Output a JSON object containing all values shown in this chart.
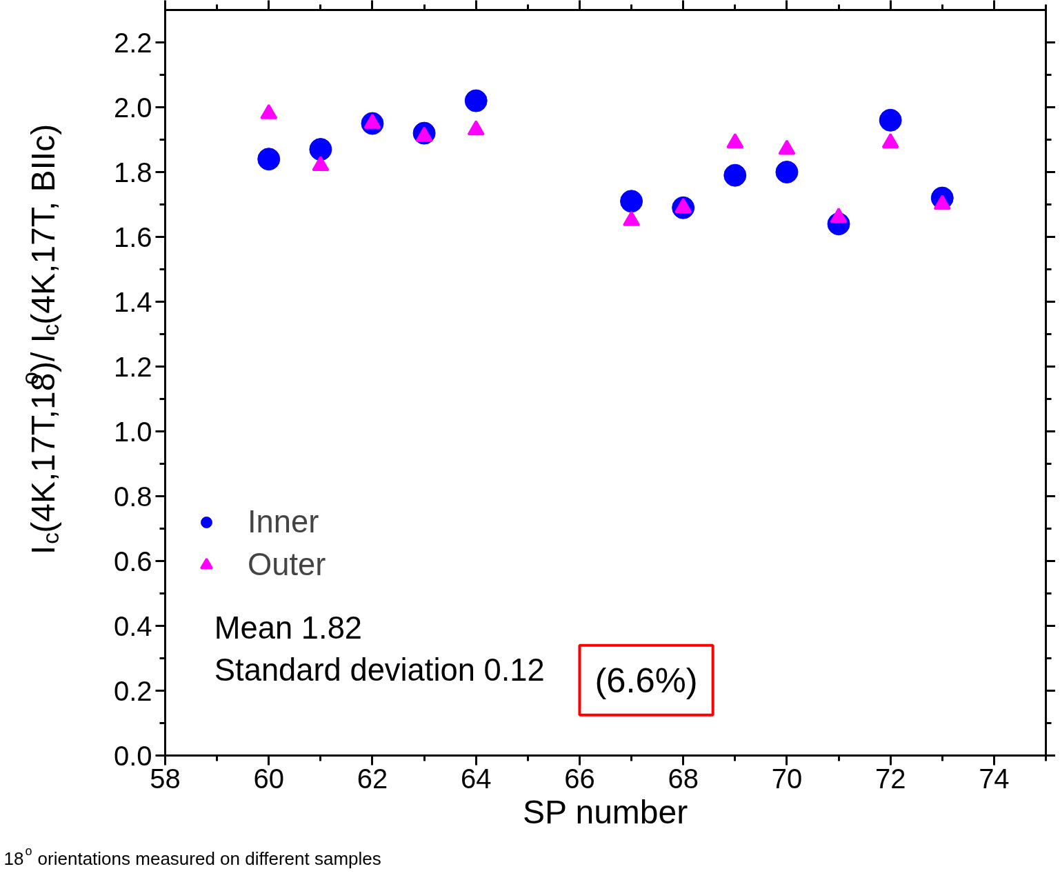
{
  "chart_data": {
    "type": "scatter",
    "xlabel": "SP number",
    "ylabel": "I$_{c}$(4K,17T,18$^{o}$)/ I$_{c}$(4K,17T, BIIc)",
    "x": [
      60,
      61,
      62,
      63,
      64,
      67,
      68,
      69,
      70,
      71,
      72,
      73
    ],
    "series": [
      {
        "name": "Inner",
        "color": "#0000ff",
        "marker": "circle",
        "values": [
          1.84,
          1.87,
          1.95,
          1.92,
          2.02,
          1.71,
          1.69,
          1.79,
          1.8,
          1.64,
          1.96,
          1.72
        ]
      },
      {
        "name": "Outer",
        "color": "#ff00ff",
        "marker": "triangle",
        "values": [
          1.98,
          1.82,
          1.95,
          1.91,
          1.93,
          1.65,
          1.69,
          1.89,
          1.87,
          1.66,
          1.89,
          1.7
        ]
      }
    ],
    "xlim": [
      58,
      75
    ],
    "xticks": [
      58,
      60,
      62,
      64,
      66,
      68,
      70,
      72,
      74
    ],
    "ylim": [
      0,
      2.3
    ],
    "yticks": [
      {
        "value": 0,
        "label": "0.0"
      },
      0.2,
      0.4,
      0.6,
      0.8,
      {
        "value": 1,
        "label": "1.0"
      },
      1.2,
      1.4,
      1.6,
      1.8,
      {
        "value": 2,
        "label": "2.0"
      },
      2.2
    ],
    "grid": false,
    "legend": "left",
    "annotations": [
      "Mean 1.82",
      "Standard deviation 0.12",
      "(6.6%)",
      "18$^{o}$ orientations measured on different samples"
    ]
  }
}
